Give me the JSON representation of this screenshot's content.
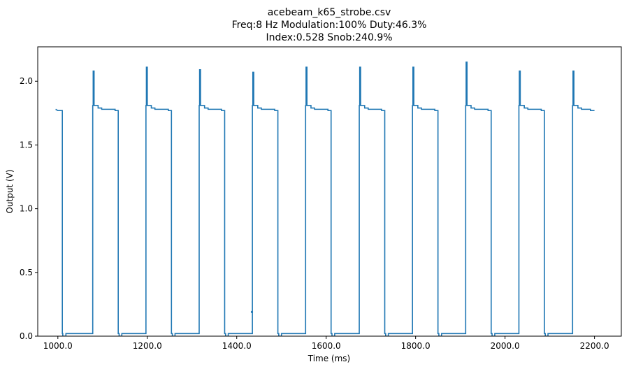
{
  "chart_data": {
    "type": "line",
    "title_lines": [
      "acebeam_k65_strobe.csv",
      "Freq:8 Hz  Modulation:100%  Duty:46.3%",
      "Index:0.528  Snob:240.9%"
    ],
    "xlabel": "Time (ms)",
    "ylabel": "Output (V)",
    "xlim": [
      955,
      2260
    ],
    "ylim": [
      0.0,
      2.27
    ],
    "xticks": [
      1000,
      1200,
      1400,
      1600,
      1800,
      2000,
      2200
    ],
    "xtick_labels": [
      "1000.0",
      "1200.0",
      "1400.0",
      "1600.0",
      "1800.0",
      "2000.0",
      "2200.0"
    ],
    "yticks": [
      0.0,
      0.5,
      1.0,
      1.5,
      2.0
    ],
    "ytick_labels": [
      "0.0",
      "0.5",
      "1.0",
      "1.5",
      "2.0"
    ],
    "grid": false,
    "series_color": "#1f77b4",
    "series": [
      {
        "x": [
          995,
          995,
          1000,
          1000,
          1005,
          1005,
          1010,
          1010,
          1011,
          1011,
          1018,
          1018,
          1078,
          1078,
          1079,
          1079,
          1081,
          1081,
          1090,
          1090,
          1098,
          1098,
          1118,
          1118,
          1128,
          1128,
          1135,
          1135,
          1137,
          1137,
          1143,
          1143,
          1197,
          1197,
          1198,
          1198,
          1200,
          1200,
          1209,
          1209,
          1217,
          1217,
          1237,
          1237,
          1247,
          1247,
          1254,
          1254,
          1256,
          1256,
          1262,
          1262,
          1316,
          1316,
          1317,
          1317,
          1319,
          1319,
          1328,
          1328,
          1336,
          1336,
          1356,
          1356,
          1366,
          1366,
          1373,
          1373,
          1375,
          1375,
          1381,
          1381,
          1435,
          1435,
          1436,
          1436,
          1438,
          1438,
          1447,
          1447,
          1455,
          1455,
          1475,
          1475,
          1485,
          1485,
          1492,
          1492,
          1494,
          1494,
          1500,
          1500,
          1554,
          1554,
          1555,
          1555,
          1557,
          1557,
          1566,
          1566,
          1574,
          1574,
          1594,
          1594,
          1604,
          1604,
          1611,
          1611,
          1613,
          1613,
          1619,
          1619,
          1674,
          1674,
          1675,
          1675,
          1677,
          1677,
          1686,
          1686,
          1694,
          1694,
          1714,
          1714,
          1724,
          1724,
          1731,
          1731,
          1733,
          1733,
          1739,
          1739,
          1793,
          1793,
          1794,
          1794,
          1796,
          1796,
          1805,
          1805,
          1813,
          1813,
          1833,
          1833,
          1843,
          1843,
          1850,
          1850,
          1852,
          1852,
          1858,
          1858,
          1912,
          1912,
          1913,
          1913,
          1915,
          1915,
          1924,
          1924,
          1932,
          1932,
          1952,
          1952,
          1962,
          1962,
          1969,
          1969,
          1971,
          1971,
          1977,
          1977,
          2031,
          2031,
          2032,
          2032,
          2034,
          2034,
          2043,
          2043,
          2051,
          2051,
          2071,
          2071,
          2081,
          2081,
          2088,
          2088,
          2090,
          2090,
          2096,
          2096,
          2151,
          2151,
          2152,
          2152,
          2154,
          2154,
          2163,
          2163,
          2171,
          2171,
          2191,
          2191,
          2200
        ],
        "y": [
          1.78,
          1.78,
          1.77,
          1.77,
          1.77,
          1.77,
          1.77,
          0.02,
          0.02,
          0.0,
          0.0,
          0.02,
          0.02,
          1.81,
          1.81,
          2.08,
          2.08,
          1.81,
          1.81,
          1.79,
          1.79,
          1.78,
          1.78,
          1.78,
          1.78,
          1.77,
          1.77,
          0.02,
          0.02,
          0.0,
          0.0,
          0.02,
          0.02,
          1.81,
          1.81,
          2.11,
          2.11,
          1.81,
          1.81,
          1.79,
          1.79,
          1.78,
          1.78,
          1.78,
          1.78,
          1.77,
          1.77,
          0.02,
          0.02,
          0.0,
          0.0,
          0.02,
          0.02,
          1.81,
          1.81,
          2.09,
          2.09,
          1.81,
          1.81,
          1.79,
          1.79,
          1.78,
          1.78,
          1.78,
          1.78,
          1.77,
          1.77,
          0.02,
          0.02,
          0.0,
          0.0,
          0.02,
          0.02,
          1.81,
          1.81,
          2.07,
          2.07,
          1.81,
          1.81,
          1.79,
          1.79,
          1.78,
          1.78,
          1.78,
          1.78,
          1.77,
          1.77,
          0.02,
          0.02,
          0.0,
          0.0,
          0.02,
          0.02,
          1.81,
          1.81,
          2.11,
          2.11,
          1.81,
          1.81,
          1.79,
          1.79,
          1.78,
          1.78,
          1.78,
          1.78,
          1.77,
          1.77,
          0.02,
          0.02,
          0.0,
          0.0,
          0.02,
          0.02,
          1.81,
          1.81,
          2.11,
          2.11,
          1.81,
          1.81,
          1.79,
          1.79,
          1.78,
          1.78,
          1.78,
          1.78,
          1.77,
          1.77,
          0.02,
          0.02,
          0.0,
          0.0,
          0.02,
          0.02,
          1.81,
          1.81,
          2.11,
          2.11,
          1.81,
          1.81,
          1.79,
          1.79,
          1.78,
          1.78,
          1.78,
          1.78,
          1.77,
          1.77,
          0.02,
          0.02,
          0.0,
          0.0,
          0.02,
          0.02,
          1.81,
          1.81,
          2.15,
          2.15,
          1.81,
          1.81,
          1.79,
          1.79,
          1.78,
          1.78,
          1.78,
          1.78,
          1.77,
          1.77,
          0.02,
          0.02,
          0.0,
          0.0,
          0.02,
          0.02,
          1.81,
          1.81,
          2.08,
          2.08,
          1.81,
          1.81,
          1.79,
          1.79,
          1.78,
          1.78,
          1.78,
          1.78,
          1.77,
          1.77,
          0.02,
          0.02,
          0.0,
          0.0,
          0.02,
          0.02,
          1.81,
          1.81,
          2.08,
          2.08,
          1.81,
          1.81,
          1.79,
          1.79,
          1.78,
          1.78,
          1.77,
          1.77
        ]
      }
    ],
    "outlier_points": [
      {
        "x": 1434,
        "y": 0.19
      }
    ]
  }
}
